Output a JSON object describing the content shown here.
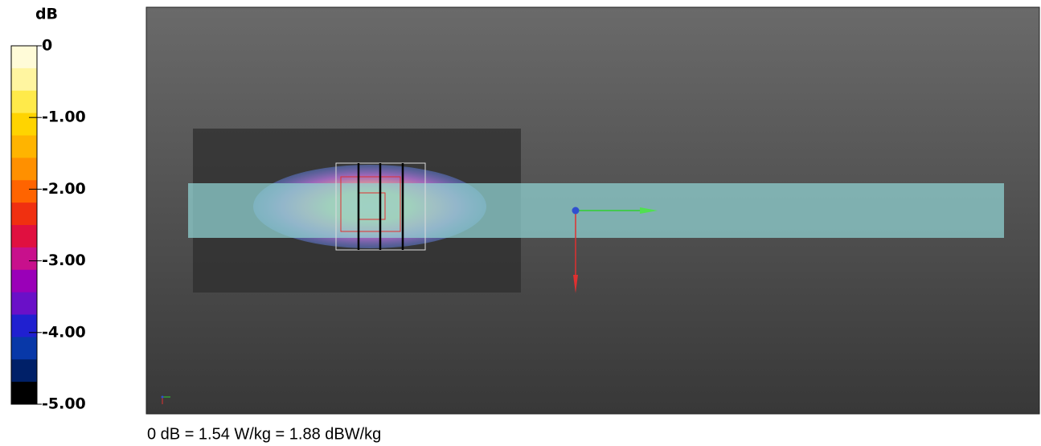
{
  "legend": {
    "title": "dB",
    "ticks": [
      "0",
      "-1.00",
      "-2.00",
      "-3.00",
      "-4.00",
      "-5.00"
    ],
    "colors": [
      "#fffbd8",
      "#fff5a0",
      "#ffea4a",
      "#ffd400",
      "#ffb400",
      "#ff9000",
      "#ff6400",
      "#f03010",
      "#e01040",
      "#c8108c",
      "#9a00b8",
      "#6a10c8",
      "#2020d0",
      "#0838a8",
      "#002068",
      "#000000"
    ]
  },
  "caption": "0 dB = 1.54 W/kg = 1.88 dBW/kg"
}
